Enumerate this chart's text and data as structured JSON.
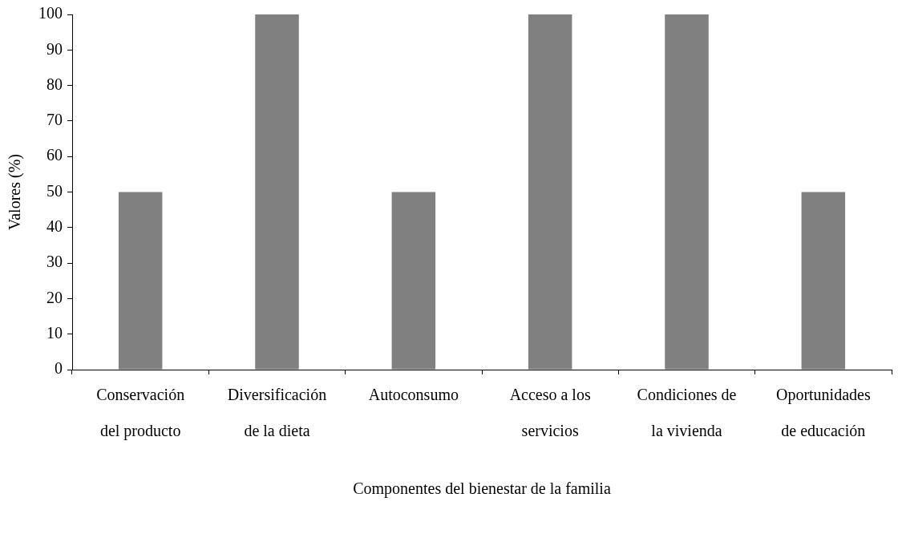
{
  "chart_data": {
    "type": "bar",
    "xlabel": "Componentes del bienestar de la familia",
    "ylabel": "Valores (%)",
    "categories": [
      "Conservación\ndel producto",
      "Diversificación\nde la dieta",
      "Autoconsumo",
      "Acceso a los\nservicios",
      "Condiciones de\nla vivienda",
      "Oportunidades\nde educación"
    ],
    "values": [
      50,
      100,
      50,
      100,
      100,
      50
    ],
    "color": "#808080",
    "ylim": [
      0,
      100
    ],
    "yticks": [
      0,
      10,
      20,
      30,
      40,
      50,
      60,
      70,
      80,
      90,
      100
    ],
    "grid": false,
    "legend": false
  }
}
